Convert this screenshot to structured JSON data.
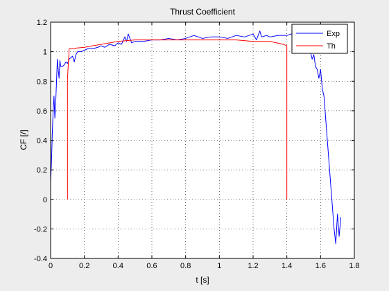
{
  "chart_data": {
    "type": "line",
    "title": "Thrust Coefficient",
    "xlabel": "t [s]",
    "ylabel": "CF [/]",
    "xlim": [
      0,
      1.8
    ],
    "ylim": [
      -0.4,
      1.2
    ],
    "xticks": [
      0,
      0.2,
      0.4,
      0.6,
      0.8,
      1,
      1.2,
      1.4,
      1.6,
      1.8
    ],
    "xtick_labels": [
      "0",
      "0.2",
      "0.4",
      "0.6",
      "0.8",
      "1",
      "1.2",
      "1.4",
      "1.6",
      "1.8"
    ],
    "yticks": [
      -0.4,
      -0.2,
      0,
      0.2,
      0.4,
      0.6,
      0.8,
      1,
      1.2
    ],
    "ytick_labels": [
      "-0.4",
      "-0.2",
      "0",
      "0.2",
      "0.4",
      "0.6",
      "0.8",
      "1",
      "1.2"
    ],
    "grid": true,
    "legend_position": "top-right",
    "series": [
      {
        "name": "Exp",
        "color": "#0000ff",
        "x": [
          0.0,
          0.005,
          0.01,
          0.015,
          0.02,
          0.025,
          0.03,
          0.035,
          0.04,
          0.045,
          0.05,
          0.055,
          0.06,
          0.07,
          0.08,
          0.09,
          0.1,
          0.11,
          0.12,
          0.13,
          0.14,
          0.15,
          0.16,
          0.18,
          0.2,
          0.22,
          0.25,
          0.28,
          0.3,
          0.32,
          0.35,
          0.38,
          0.4,
          0.42,
          0.44,
          0.45,
          0.46,
          0.48,
          0.5,
          0.55,
          0.6,
          0.65,
          0.7,
          0.75,
          0.8,
          0.85,
          0.9,
          0.95,
          1.0,
          1.05,
          1.1,
          1.15,
          1.2,
          1.22,
          1.24,
          1.25,
          1.28,
          1.3,
          1.35,
          1.4,
          1.45,
          1.48,
          1.5,
          1.52,
          1.54,
          1.55,
          1.56,
          1.57,
          1.58,
          1.59,
          1.6,
          1.61,
          1.62,
          1.63,
          1.64,
          1.65,
          1.66,
          1.67,
          1.68,
          1.69,
          1.7,
          1.71,
          1.72
        ],
        "y": [
          0.12,
          0.25,
          0.45,
          0.6,
          0.7,
          0.55,
          0.65,
          0.8,
          0.95,
          0.88,
          0.82,
          0.94,
          0.9,
          0.9,
          0.91,
          0.93,
          0.92,
          0.95,
          0.96,
          0.97,
          0.93,
          0.98,
          1.0,
          1.0,
          1.01,
          1.02,
          1.02,
          1.03,
          1.04,
          1.03,
          1.05,
          1.04,
          1.06,
          1.05,
          1.1,
          1.07,
          1.12,
          1.06,
          1.07,
          1.07,
          1.08,
          1.08,
          1.09,
          1.08,
          1.09,
          1.11,
          1.09,
          1.1,
          1.1,
          1.09,
          1.11,
          1.1,
          1.12,
          1.08,
          1.14,
          1.1,
          1.11,
          1.1,
          1.11,
          1.11,
          1.13,
          1.12,
          1.1,
          1.05,
          1.0,
          0.95,
          0.98,
          0.9,
          0.88,
          0.82,
          0.88,
          0.75,
          0.7,
          0.55,
          0.4,
          0.25,
          0.1,
          -0.05,
          -0.2,
          -0.3,
          -0.1,
          -0.25,
          -0.12
        ]
      },
      {
        "name": "Th",
        "color": "#ff0000",
        "x": [
          0.1,
          0.1,
          0.11,
          0.2,
          0.3,
          0.4,
          0.5,
          0.6,
          0.7,
          0.8,
          0.9,
          1.0,
          1.1,
          1.2,
          1.3,
          1.38,
          1.4,
          1.4
        ],
        "y": [
          0.0,
          0.82,
          1.02,
          1.03,
          1.05,
          1.07,
          1.08,
          1.08,
          1.08,
          1.08,
          1.08,
          1.08,
          1.08,
          1.07,
          1.07,
          1.05,
          1.04,
          0.0
        ]
      }
    ]
  }
}
